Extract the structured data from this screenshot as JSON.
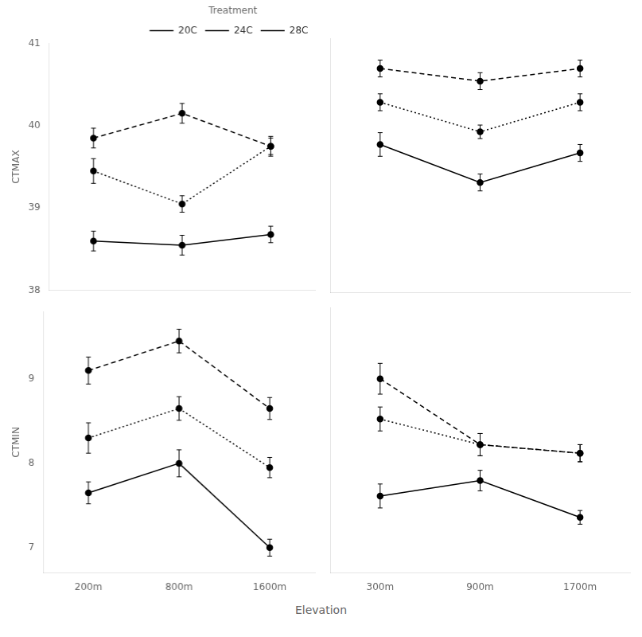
{
  "chart_data": [
    {
      "type": "line",
      "ylabel": "CTMAX",
      "categories": [
        "200m",
        "800m",
        "1600m"
      ],
      "series": [
        {
          "name": "20C",
          "color": "black",
          "line_style": "solid",
          "marker": "circle",
          "values": [
            38.6,
            38.55,
            38.68
          ],
          "yerr": [
            0.12,
            0.12,
            0.1
          ]
        },
        {
          "name": "24C",
          "color": "black",
          "line_style": "dotted",
          "marker": "circle",
          "values": [
            39.45,
            39.05,
            39.75
          ],
          "yerr": [
            0.15,
            0.1,
            0.12
          ]
        },
        {
          "name": "28C",
          "color": "black",
          "line_style": "dashed",
          "marker": "circle",
          "values": [
            39.85,
            40.15,
            39.75
          ],
          "yerr": [
            0.12,
            0.12,
            0.1
          ]
        }
      ],
      "ylim": [
        38.0,
        41.0
      ],
      "yticks": [
        38,
        39,
        40,
        41
      ],
      "grid": false,
      "legend": "upper right",
      "legend_title": "Treatment",
      "tick_labels": "y"
    },
    {
      "type": "line",
      "categories": [
        "300m",
        "900m",
        "1700m"
      ],
      "series": [
        {
          "name": "20C",
          "color": "black",
          "line_style": "solid",
          "marker": "circle",
          "values": [
            39.75,
            39.3,
            39.65
          ],
          "yerr": [
            0.14,
            0.1,
            0.1
          ]
        },
        {
          "name": "24C",
          "color": "black",
          "line_style": "dotted",
          "marker": "circle",
          "values": [
            40.25,
            39.9,
            40.25
          ],
          "yerr": [
            0.1,
            0.08,
            0.1
          ]
        },
        {
          "name": "28C",
          "color": "black",
          "line_style": "dashed",
          "marker": "circle",
          "values": [
            40.65,
            40.5,
            40.65
          ],
          "yerr": [
            0.1,
            0.1,
            0.1
          ]
        }
      ],
      "ylim": [
        38.0,
        41.0
      ],
      "yticks": [
        38,
        39,
        40,
        41
      ],
      "grid": false,
      "tick_labels": false
    },
    {
      "type": "line",
      "ylabel": "CTMIN",
      "xlabel": "Elevation",
      "categories": [
        "200m",
        "800m",
        "1600m"
      ],
      "series": [
        {
          "name": "20C",
          "color": "black",
          "line_style": "solid",
          "marker": "circle",
          "values": [
            7.65,
            8.0,
            7.0
          ],
          "yerr": [
            0.13,
            0.16,
            0.1
          ]
        },
        {
          "name": "24C",
          "color": "black",
          "line_style": "dotted",
          "marker": "circle",
          "values": [
            8.3,
            8.65,
            7.95
          ],
          "yerr": [
            0.18,
            0.14,
            0.12
          ]
        },
        {
          "name": "28C",
          "color": "black",
          "line_style": "dashed",
          "marker": "circle",
          "values": [
            9.1,
            9.45,
            8.65
          ],
          "yerr": [
            0.16,
            0.14,
            0.13
          ]
        }
      ],
      "ylim": [
        6.7,
        9.8
      ],
      "yticks": [
        7,
        8,
        9
      ],
      "grid": false
    },
    {
      "type": "line",
      "categories": [
        "300m",
        "900m",
        "1700m"
      ],
      "series": [
        {
          "name": "20C",
          "color": "black",
          "line_style": "solid",
          "marker": "circle",
          "values": [
            7.6,
            7.78,
            7.35
          ],
          "yerr": [
            0.14,
            0.12,
            0.08
          ]
        },
        {
          "name": "24C",
          "color": "black",
          "line_style": "dotted",
          "marker": "circle",
          "values": [
            8.5,
            8.2,
            8.1
          ],
          "yerr": [
            0.14,
            0.13,
            0.1
          ]
        },
        {
          "name": "28C",
          "color": "black",
          "line_style": "dashed",
          "marker": "circle",
          "values": [
            8.97,
            8.2,
            8.1
          ],
          "yerr": [
            0.18,
            0.13,
            0.1
          ]
        }
      ],
      "ylim": [
        6.7,
        9.8
      ],
      "yticks": [
        7,
        8,
        9
      ],
      "grid": false,
      "tick_labels": "x"
    }
  ]
}
